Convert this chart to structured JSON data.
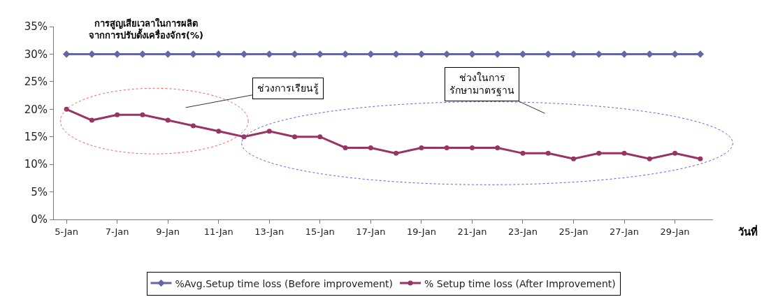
{
  "chart_data": {
    "type": "line",
    "title": "การสูญเสียเวลาในการผลิต\nจากการปรับตั้งเครื่องจักร(%)",
    "xlabel": "วันที่",
    "categories": [
      "5-Jan",
      null,
      "7-Jan",
      null,
      "9-Jan",
      null,
      "11-Jan",
      null,
      "13-Jan",
      null,
      "15-Jan",
      null,
      "17-Jan",
      null,
      "19-Jan",
      null,
      "21-Jan",
      null,
      "23-Jan",
      null,
      "25-Jan",
      null,
      "27-Jan",
      null,
      "29-Jan",
      null
    ],
    "series": [
      {
        "name": "%Avg.Setup time loss (Before improvement)",
        "color": "#6666a6",
        "marker": "diamond",
        "values": [
          30,
          30,
          30,
          30,
          30,
          30,
          30,
          30,
          30,
          30,
          30,
          30,
          30,
          30,
          30,
          30,
          30,
          30,
          30,
          30,
          30,
          30,
          30,
          30,
          30,
          30
        ]
      },
      {
        "name": "% Setup time loss (After Improvement)",
        "color": "#993366",
        "marker": "circle",
        "values": [
          20,
          18,
          19,
          19,
          18,
          17,
          16,
          15,
          16,
          15,
          15,
          13,
          13,
          12,
          13,
          13,
          13,
          13,
          12,
          12,
          11,
          12,
          12,
          11,
          12,
          11
        ]
      }
    ],
    "ylim": [
      0,
      35
    ],
    "yticks": [
      {
        "value": 0,
        "label": "0%"
      },
      {
        "value": 5,
        "label": "5%"
      },
      {
        "value": 10,
        "label": "10%"
      },
      {
        "value": 15,
        "label": "15%"
      },
      {
        "value": 20,
        "label": "20%"
      },
      {
        "value": 25,
        "label": "25%"
      },
      {
        "value": 30,
        "label": "30%"
      },
      {
        "value": 35,
        "label": "35%"
      }
    ],
    "annotations": [
      "ช่วงการเรียนรู้",
      "ช่วงในการ\nรักษามาตรฐาน"
    ],
    "grid": false,
    "legend": "bottom",
    "line_style": "solid"
  }
}
